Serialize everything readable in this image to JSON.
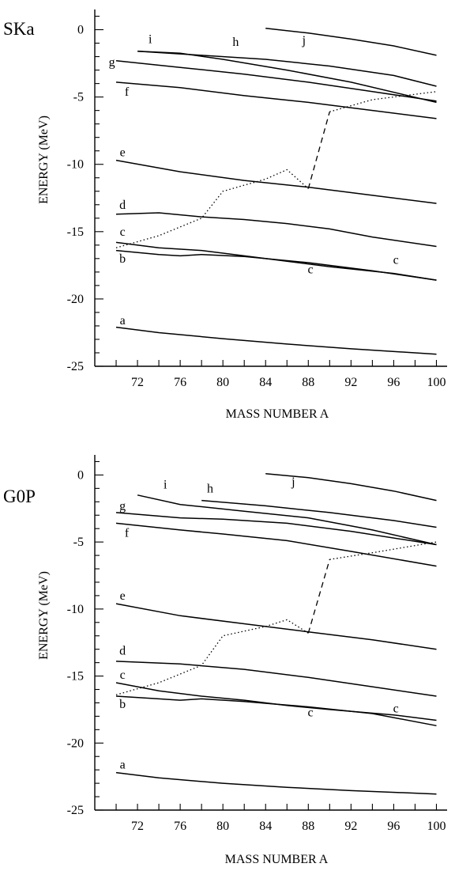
{
  "chart_data": [
    {
      "type": "line",
      "title": "SKa",
      "xlabel": "MASS NUMBER A",
      "ylabel": "ENERGY (MeV)",
      "xlim": [
        68,
        101
      ],
      "ylim": [
        -25,
        1.5
      ],
      "xticks": [
        72,
        76,
        80,
        84,
        88,
        92,
        96,
        100
      ],
      "yticks": [
        0,
        -5,
        -10,
        -15,
        -20,
        -25
      ],
      "series": [
        {
          "name": "a",
          "style": "solid",
          "points": [
            [
              70,
              -22.1
            ],
            [
              74,
              -22.5
            ],
            [
              80,
              -22.95
            ],
            [
              86,
              -23.35
            ],
            [
              92,
              -23.7
            ],
            [
              100,
              -24.1
            ]
          ]
        },
        {
          "name": "b",
          "style": "solid",
          "points": [
            [
              70,
              -16.4
            ],
            [
              74,
              -16.7
            ],
            [
              76,
              -16.8
            ],
            [
              78,
              -16.7
            ],
            [
              82,
              -16.85
            ],
            [
              88,
              -17.3
            ],
            [
              94,
              -17.9
            ],
            [
              100,
              -18.6
            ]
          ]
        },
        {
          "name": "c",
          "style": "solid",
          "points": [
            [
              70,
              -15.8
            ],
            [
              74,
              -16.2
            ],
            [
              78,
              -16.4
            ],
            [
              82,
              -16.8
            ],
            [
              86,
              -17.2
            ],
            [
              90,
              -17.6
            ],
            [
              96,
              -18.1
            ],
            [
              100,
              -18.6
            ]
          ]
        },
        {
          "name": "d",
          "style": "solid",
          "points": [
            [
              70,
              -13.7
            ],
            [
              74,
              -13.6
            ],
            [
              78,
              -13.9
            ],
            [
              82,
              -14.1
            ],
            [
              86,
              -14.4
            ],
            [
              90,
              -14.8
            ],
            [
              94,
              -15.4
            ],
            [
              100,
              -16.1
            ]
          ]
        },
        {
          "name": "e",
          "style": "solid",
          "points": [
            [
              70,
              -9.7
            ],
            [
              76,
              -10.55
            ],
            [
              82,
              -11.2
            ],
            [
              88,
              -11.7
            ],
            [
              94,
              -12.3
            ],
            [
              100,
              -12.9
            ]
          ]
        },
        {
          "name": "f",
          "style": "solid",
          "points": [
            [
              70,
              -3.9
            ],
            [
              76,
              -4.3
            ],
            [
              82,
              -4.9
            ],
            [
              88,
              -5.4
            ],
            [
              94,
              -6
            ],
            [
              100,
              -6.6
            ]
          ]
        },
        {
          "name": "g",
          "style": "solid",
          "points": [
            [
              70,
              -2.3
            ],
            [
              76,
              -2.8
            ],
            [
              82,
              -3.3
            ],
            [
              88,
              -3.9
            ],
            [
              94,
              -4.6
            ],
            [
              100,
              -5.3
            ]
          ]
        },
        {
          "name": "h",
          "style": "solid",
          "points": [
            [
              72,
              -1.6
            ],
            [
              78,
              -1.9
            ],
            [
              84,
              -2.2
            ],
            [
              90,
              -2.7
            ],
            [
              96,
              -3.4
            ],
            [
              100,
              -4.2
            ]
          ]
        },
        {
          "name": "i",
          "style": "solid",
          "points": [
            [
              72,
              -1.6
            ],
            [
              76,
              -1.75
            ],
            [
              80,
              -2.2
            ],
            [
              86,
              -3
            ],
            [
              92,
              -3.9
            ],
            [
              100,
              -5.4
            ]
          ]
        },
        {
          "name": "j",
          "style": "solid",
          "points": [
            [
              84,
              0.1
            ],
            [
              88,
              -0.25
            ],
            [
              92,
              -0.7
            ],
            [
              96,
              -1.2
            ],
            [
              100,
              -1.9
            ]
          ]
        },
        {
          "name": "",
          "style": "dotted",
          "points": [
            [
              70,
              -16.2
            ],
            [
              74,
              -15.3
            ],
            [
              78,
              -14
            ],
            [
              80,
              -12
            ],
            [
              84,
              -11.1
            ],
            [
              86,
              -10.4
            ],
            [
              88,
              -11.8
            ]
          ]
        },
        {
          "name": "",
          "style": "dashed",
          "points": [
            [
              88,
              -11.8
            ],
            [
              90,
              -6.1
            ]
          ]
        },
        {
          "name": "",
          "style": "dotted",
          "points": [
            [
              90,
              -6.1
            ],
            [
              94,
              -5.2
            ],
            [
              100,
              -4.6
            ]
          ]
        }
      ],
      "labels": [
        {
          "text": "a",
          "x": 70.6,
          "y": -21.9
        },
        {
          "text": "b",
          "x": 70.6,
          "y": -17.3
        },
        {
          "text": "c",
          "x": 70.6,
          "y": -15.3
        },
        {
          "text": "c",
          "x": 88.2,
          "y": -18.1
        },
        {
          "text": "c",
          "x": 96.2,
          "y": -17.4
        },
        {
          "text": "d",
          "x": 70.6,
          "y": -13.3
        },
        {
          "text": "e",
          "x": 70.6,
          "y": -9.4
        },
        {
          "text": "f",
          "x": 71,
          "y": -4.9
        },
        {
          "text": "g",
          "x": 69.6,
          "y": -2.7
        },
        {
          "text": "h",
          "x": 81.2,
          "y": -1.2
        },
        {
          "text": "i",
          "x": 73.2,
          "y": -1
        },
        {
          "text": "j",
          "x": 87.6,
          "y": -1.1
        }
      ]
    },
    {
      "type": "line",
      "title": "G0P",
      "xlabel": "MASS NUMBER A",
      "ylabel": "ENERGY (MeV)",
      "xlim": [
        68,
        101
      ],
      "ylim": [
        -25,
        1.5
      ],
      "xticks": [
        72,
        76,
        80,
        84,
        88,
        92,
        96,
        100
      ],
      "yticks": [
        0,
        -5,
        -10,
        -15,
        -20,
        -25
      ],
      "series": [
        {
          "name": "a",
          "style": "solid",
          "points": [
            [
              70,
              -22.2
            ],
            [
              74,
              -22.6
            ],
            [
              80,
              -23
            ],
            [
              86,
              -23.3
            ],
            [
              92,
              -23.55
            ],
            [
              100,
              -23.8
            ]
          ]
        },
        {
          "name": "b",
          "style": "solid",
          "points": [
            [
              70,
              -16.5
            ],
            [
              74,
              -16.7
            ],
            [
              76,
              -16.8
            ],
            [
              78,
              -16.7
            ],
            [
              82,
              -16.9
            ],
            [
              88,
              -17.3
            ],
            [
              94,
              -17.8
            ],
            [
              100,
              -18.7
            ]
          ]
        },
        {
          "name": "c",
          "style": "solid",
          "points": [
            [
              70,
              -15.5
            ],
            [
              74,
              -16.1
            ],
            [
              78,
              -16.5
            ],
            [
              82,
              -16.8
            ],
            [
              86,
              -17.2
            ],
            [
              90,
              -17.5
            ],
            [
              96,
              -17.9
            ],
            [
              100,
              -18.3
            ]
          ]
        },
        {
          "name": "d",
          "style": "solid",
          "points": [
            [
              70,
              -13.9
            ],
            [
              76,
              -14.1
            ],
            [
              82,
              -14.5
            ],
            [
              88,
              -15.1
            ],
            [
              94,
              -15.8
            ],
            [
              100,
              -16.5
            ]
          ]
        },
        {
          "name": "e",
          "style": "solid",
          "points": [
            [
              70,
              -9.6
            ],
            [
              76,
              -10.5
            ],
            [
              82,
              -11.1
            ],
            [
              88,
              -11.7
            ],
            [
              94,
              -12.3
            ],
            [
              100,
              -13
            ]
          ]
        },
        {
          "name": "f",
          "style": "solid",
          "points": [
            [
              70,
              -3.6
            ],
            [
              76,
              -4.1
            ],
            [
              80,
              -4.4
            ],
            [
              86,
              -4.9
            ],
            [
              92,
              -5.7
            ],
            [
              100,
              -6.8
            ]
          ]
        },
        {
          "name": "g",
          "style": "solid",
          "points": [
            [
              70,
              -2.8
            ],
            [
              76,
              -3.2
            ],
            [
              80,
              -3.3
            ],
            [
              86,
              -3.6
            ],
            [
              92,
              -4.2
            ],
            [
              100,
              -5.2
            ]
          ]
        },
        {
          "name": "h",
          "style": "solid",
          "points": [
            [
              78,
              -1.9
            ],
            [
              84,
              -2.3
            ],
            [
              90,
              -2.8
            ],
            [
              96,
              -3.4
            ],
            [
              100,
              -3.9
            ]
          ]
        },
        {
          "name": "i",
          "style": "solid",
          "points": [
            [
              72,
              -1.5
            ],
            [
              76,
              -2.2
            ],
            [
              82,
              -2.7
            ],
            [
              88,
              -3.2
            ],
            [
              94,
              -4.1
            ],
            [
              100,
              -5.2
            ]
          ]
        },
        {
          "name": "j",
          "style": "solid",
          "points": [
            [
              84,
              0.1
            ],
            [
              88,
              -0.2
            ],
            [
              92,
              -0.65
            ],
            [
              96,
              -1.2
            ],
            [
              100,
              -1.9
            ]
          ]
        },
        {
          "name": "",
          "style": "dotted",
          "points": [
            [
              70,
              -16.4
            ],
            [
              74,
              -15.5
            ],
            [
              78,
              -14.2
            ],
            [
              80,
              -12
            ],
            [
              84,
              -11.3
            ],
            [
              86,
              -10.8
            ],
            [
              88,
              -11.8
            ]
          ]
        },
        {
          "name": "",
          "style": "dashed",
          "points": [
            [
              88,
              -11.8
            ],
            [
              90,
              -6.3
            ]
          ]
        },
        {
          "name": "",
          "style": "dotted",
          "points": [
            [
              90,
              -6.3
            ],
            [
              94,
              -5.8
            ],
            [
              100,
              -5
            ]
          ]
        }
      ],
      "labels": [
        {
          "text": "a",
          "x": 70.6,
          "y": -21.9
        },
        {
          "text": "b",
          "x": 70.6,
          "y": -17.4
        },
        {
          "text": "c",
          "x": 70.6,
          "y": -15.2
        },
        {
          "text": "c",
          "x": 88.2,
          "y": -18
        },
        {
          "text": "c",
          "x": 96.2,
          "y": -17.7
        },
        {
          "text": "d",
          "x": 70.6,
          "y": -13.4
        },
        {
          "text": "e",
          "x": 70.6,
          "y": -9.3
        },
        {
          "text": "f",
          "x": 71,
          "y": -4.6
        },
        {
          "text": "g",
          "x": 70.6,
          "y": -2.6
        },
        {
          "text": "h",
          "x": 78.8,
          "y": -1.3
        },
        {
          "text": "i",
          "x": 74.6,
          "y": -1
        },
        {
          "text": "j",
          "x": 86.6,
          "y": -0.8
        }
      ]
    }
  ]
}
